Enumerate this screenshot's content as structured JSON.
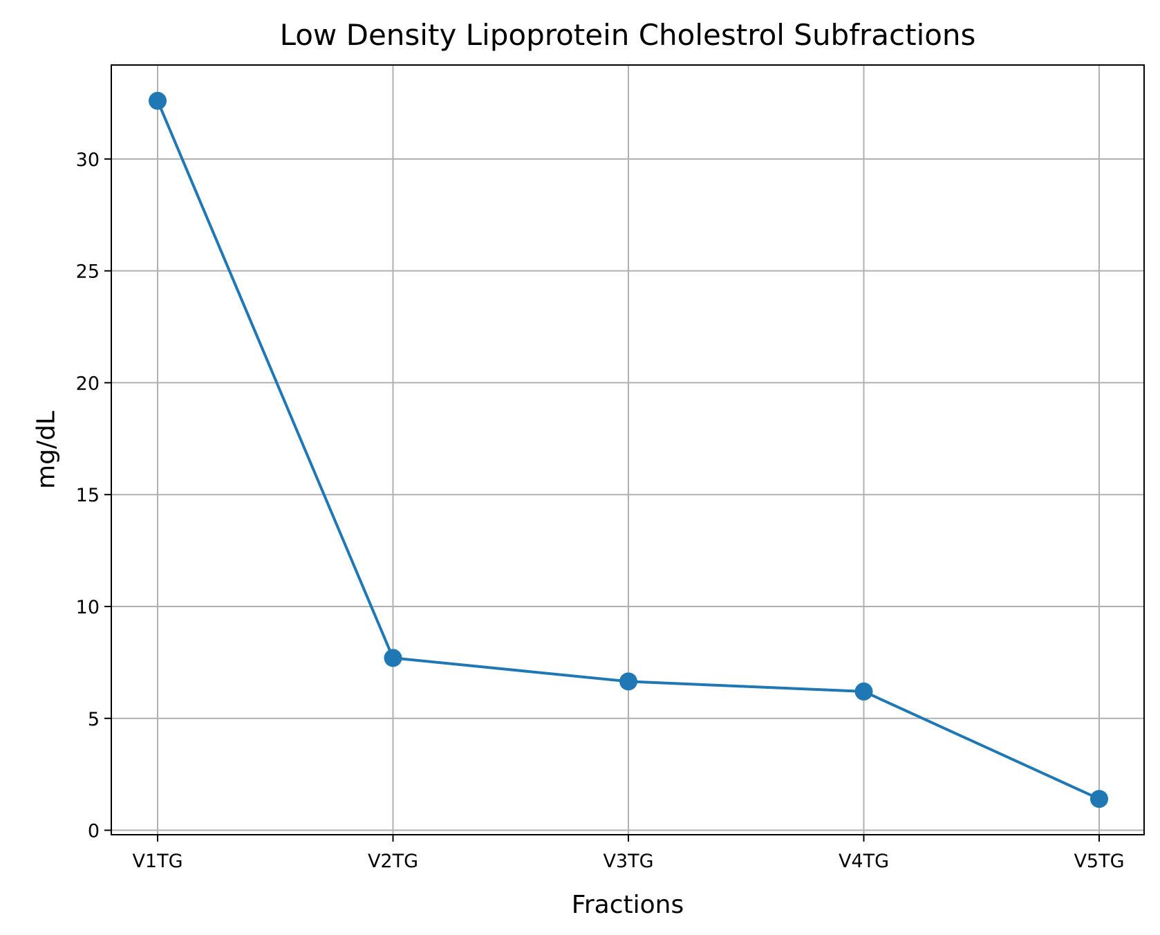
{
  "chart_data": {
    "type": "line",
    "title": "Low Density Lipoprotein Cholestrol Subfractions",
    "xlabel": "Fractions",
    "ylabel": "mg/dL",
    "categories": [
      "V1TG",
      "V2TG",
      "V3TG",
      "V4TG",
      "V5TG"
    ],
    "series": [
      {
        "values": [
          32.6,
          7.7,
          6.65,
          6.2,
          1.4
        ]
      }
    ],
    "ylim": [
      -0.2,
      34.2
    ],
    "yticks": [
      "0",
      "5",
      "10",
      "15",
      "20",
      "25",
      "30"
    ],
    "grid": true,
    "marker": "circle",
    "color": "#1f77b4"
  }
}
